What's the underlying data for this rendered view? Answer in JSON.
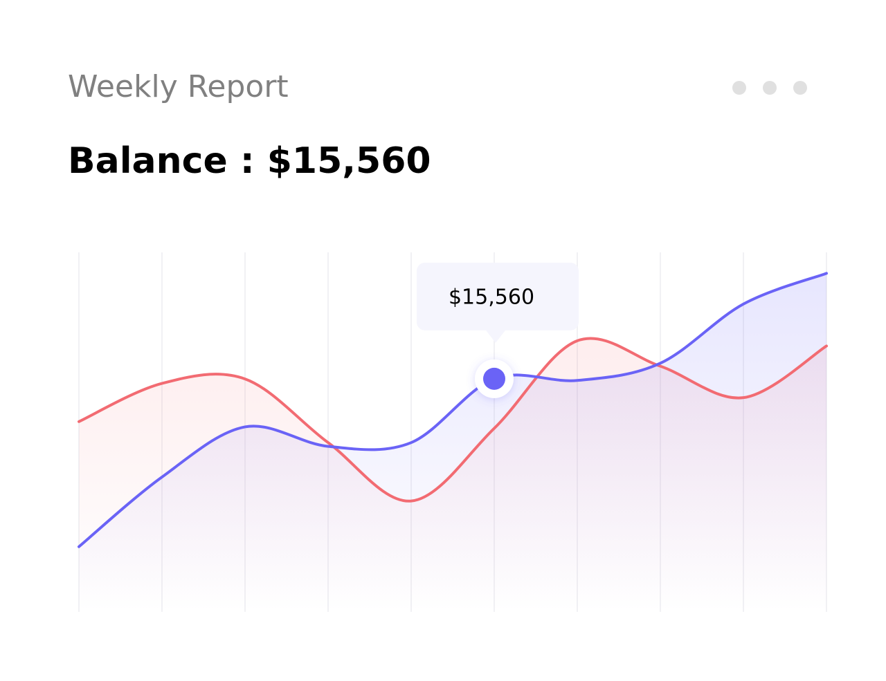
{
  "chart_data": {
    "type": "line",
    "title": "Weekly Report",
    "subtitle": "Balance : $15,560",
    "categories": [
      null,
      null,
      null,
      null,
      null,
      null,
      null,
      null,
      null,
      null
    ],
    "series": [
      {
        "color": "#6a63f6",
        "values": [
          4350,
          9000,
          12350,
          11050,
          11300,
          15560,
          15450,
          16600,
          20550,
          22600
        ],
        "value_labels": [
          null,
          null,
          null,
          null,
          null,
          "$15,560",
          null,
          null,
          null,
          null
        ]
      },
      {
        "color": "#f26b72",
        "values": [
          12700,
          15250,
          15550,
          11300,
          7400,
          12250,
          18100,
          16400,
          14300,
          17750
        ]
      }
    ],
    "ylim": [
      0,
      24000
    ],
    "grid": true
  }
}
